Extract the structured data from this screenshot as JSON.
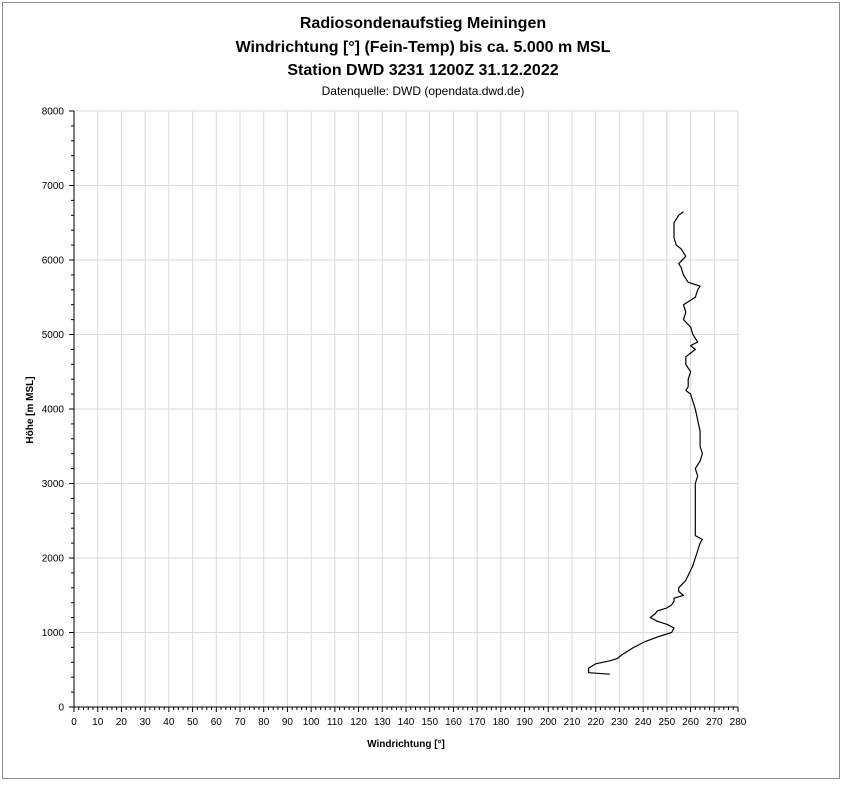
{
  "chart_data": {
    "type": "line",
    "title": "Radiosondenaufstieg Meiningen",
    "subtitle": "Windrichtung [°] (Fein-Temp) bis ca. 5.000 m MSL",
    "subtitle2": "Station DWD 3231 1200Z 31.12.2022",
    "source": "Datenquelle: DWD (opendata.dwd.de)",
    "xlabel": "Windrichtung [°]",
    "ylabel": "Höhe [m MSL]",
    "xlim": [
      0,
      280
    ],
    "ylim": [
      0,
      8000
    ],
    "xticks": [
      0,
      10,
      20,
      30,
      40,
      50,
      60,
      70,
      80,
      90,
      100,
      110,
      120,
      130,
      140,
      150,
      160,
      170,
      180,
      190,
      200,
      210,
      220,
      230,
      240,
      250,
      260,
      270,
      280
    ],
    "yticks": [
      0,
      1000,
      2000,
      3000,
      4000,
      5000,
      6000,
      7000,
      8000
    ],
    "grid": true,
    "line_color": "#000000",
    "series": [
      {
        "x": [
          226,
          217,
          217,
          220,
          226,
          229,
          231,
          236,
          241,
          247,
          252,
          253,
          250,
          246,
          243,
          245,
          246,
          250,
          252,
          253,
          253,
          257,
          255,
          255,
          258,
          261,
          262,
          263,
          264,
          265,
          262,
          262,
          262,
          262,
          262,
          263,
          262,
          264,
          265,
          264,
          264,
          264,
          262,
          261,
          260,
          258,
          259,
          259,
          260,
          258,
          258,
          260,
          262,
          260,
          263,
          261,
          260,
          257,
          258,
          257,
          262,
          263,
          264,
          259,
          257,
          256,
          255,
          258,
          256,
          254,
          253,
          253,
          255,
          257
        ],
        "y": [
          440,
          460,
          520,
          580,
          620,
          650,
          700,
          800,
          880,
          950,
          1000,
          1060,
          1110,
          1150,
          1200,
          1250,
          1290,
          1330,
          1370,
          1420,
          1460,
          1500,
          1550,
          1600,
          1700,
          1900,
          2000,
          2100,
          2200,
          2250,
          2300,
          2400,
          2600,
          2800,
          3000,
          3100,
          3200,
          3300,
          3400,
          3500,
          3600,
          3700,
          4000,
          4100,
          4200,
          4250,
          4300,
          4400,
          4500,
          4600,
          4700,
          4750,
          4800,
          4850,
          4900,
          5000,
          5100,
          5200,
          5300,
          5400,
          5500,
          5600,
          5650,
          5700,
          5800,
          5900,
          5950,
          6050,
          6150,
          6200,
          6300,
          6500,
          6600,
          6650
        ]
      }
    ]
  }
}
